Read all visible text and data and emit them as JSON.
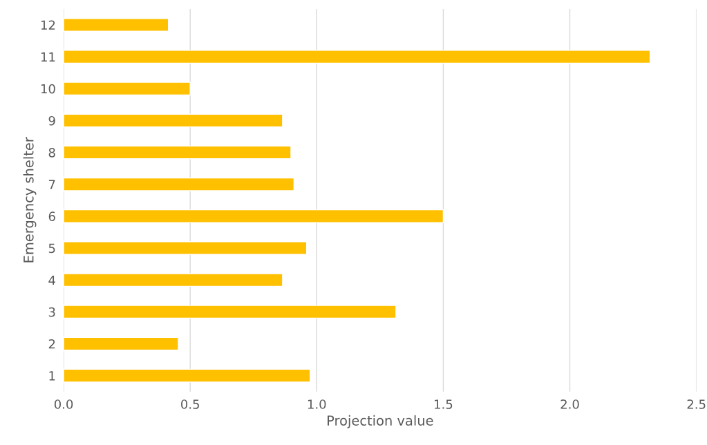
{
  "chart_data": {
    "type": "bar",
    "orientation": "horizontal",
    "xlabel": "Projection value",
    "ylabel": "Emergency shelter",
    "categories": [
      "12",
      "11",
      "10",
      "9",
      "8",
      "7",
      "6",
      "5",
      "4",
      "3",
      "2",
      "1"
    ],
    "values": [
      0.414,
      2.317,
      0.5,
      0.865,
      0.898,
      0.91,
      1.5,
      0.96,
      0.865,
      1.313,
      0.453,
      0.974
    ],
    "color": "#ffc000",
    "xlim": [
      0,
      2.5
    ],
    "xticks": [
      {
        "value": 0,
        "label": "0.0"
      },
      0.5,
      {
        "value": 1,
        "label": "1.0"
      },
      1.5,
      {
        "value": 2,
        "label": "2.0"
      },
      2.5
    ],
    "grid": "x"
  }
}
